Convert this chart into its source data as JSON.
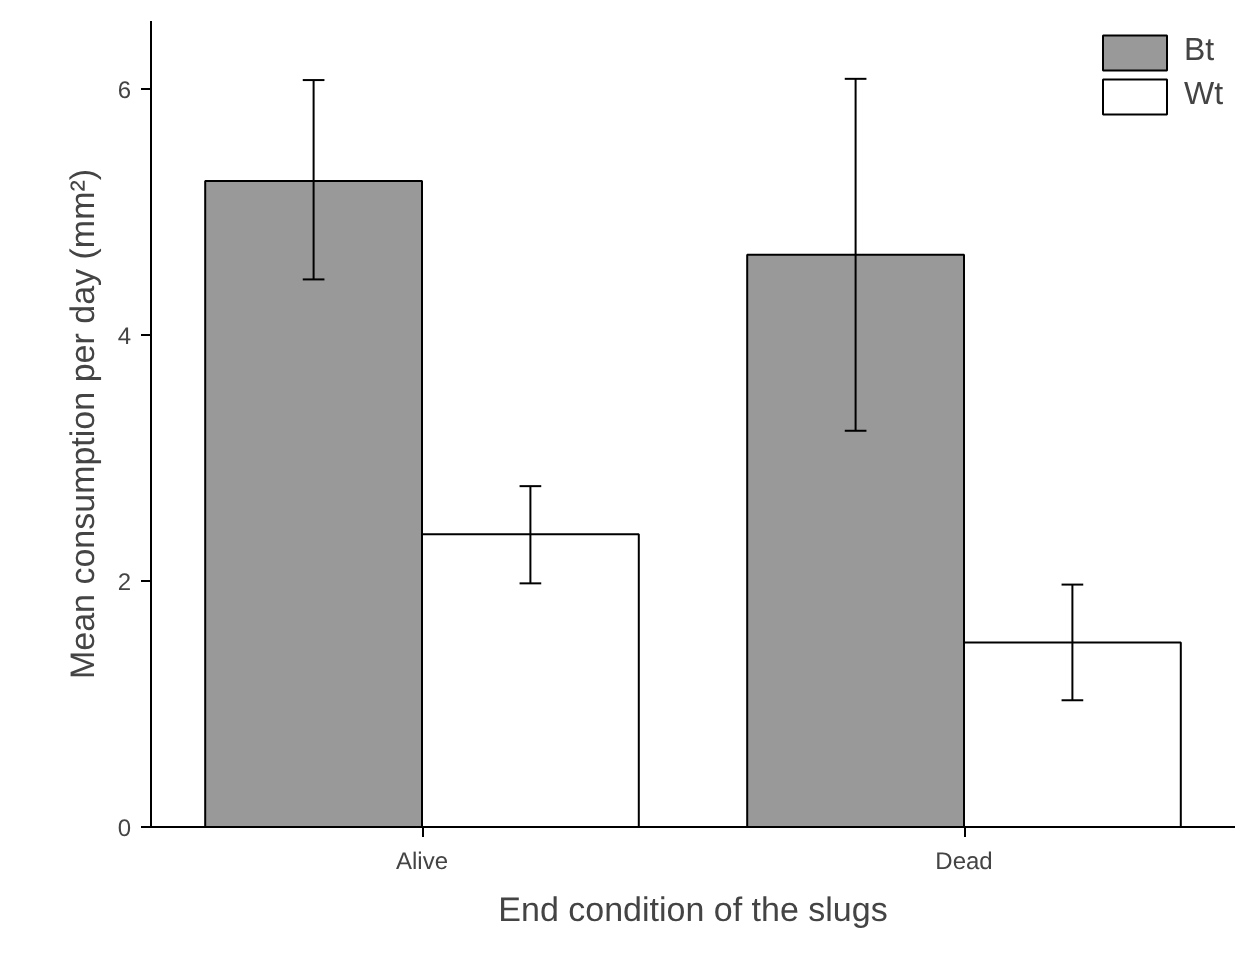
{
  "chart_data": {
    "type": "bar",
    "xlabel": "End condition of the slugs",
    "ylabel": "Mean consumption per day (mm²)",
    "categories": [
      "Alive",
      "Dead"
    ],
    "series": [
      {
        "name": "Bt",
        "color": "#999999",
        "values": [
          5.25,
          4.65
        ],
        "errors": [
          [
            4.45,
            6.07
          ],
          [
            3.22,
            6.08
          ]
        ]
      },
      {
        "name": "Wt",
        "color": "#ffffff",
        "values": [
          2.38,
          1.5
        ],
        "errors": [
          [
            1.98,
            2.77
          ],
          [
            1.03,
            1.97
          ]
        ]
      }
    ],
    "ylim": [
      0,
      6.55
    ],
    "yticks": [
      0,
      2,
      4,
      6
    ],
    "grid": false,
    "legend": "top right"
  }
}
